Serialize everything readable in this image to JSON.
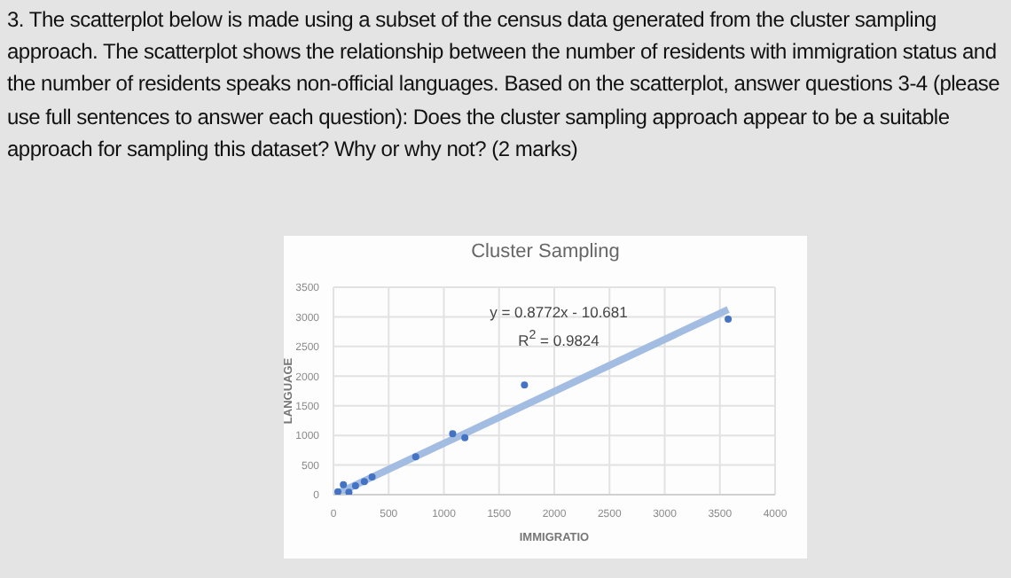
{
  "chart_data": {
    "type": "scatter",
    "title": "Cluster Sampling",
    "xlabel": "IMMIGRATIO",
    "ylabel": "LANGUAGE",
    "annotations": [
      "3. The scatterplot below is made using a subset of the census data generated from the cluster sampling approach. The scatterplot shows the relationship between the number of residents with immigration status and the number of residents speaks non-official languages. Based on the scatterplot, answer questions 3-4 (please use full sentences to answer each question): Does the cluster sampling approach appear to be a suitable approach for sampling this dataset? Why or why not? (2 marks)",
      "y = 0.8772x - 10.681",
      "R$^{2}$ = 0.9824"
    ],
    "series": [
      {
        "type": "line",
        "marker": "none",
        "color": "#a3bce2",
        "x": [
          40,
          3575
        ],
        "values": [
          24,
          3125
        ]
      },
      {
        "color": "#4472c4",
        "x": [
          40,
          140,
          90,
          200,
          280,
          350,
          745,
          1080,
          1190,
          1730,
          3575
        ],
        "values": [
          50,
          40,
          170,
          150,
          220,
          300,
          640,
          1030,
          960,
          1850,
          2960
        ]
      }
    ],
    "xlim": [
      0,
      4000
    ],
    "xticks": [
      0,
      500,
      1000,
      1500,
      2000,
      2500,
      3000,
      3500,
      4000
    ],
    "ylim": [
      0,
      3500
    ],
    "yticks": [
      0,
      500,
      1000,
      1500,
      2000,
      2500,
      3000,
      3500
    ],
    "grid": true,
    "marker": "circle",
    "legend": false
  }
}
